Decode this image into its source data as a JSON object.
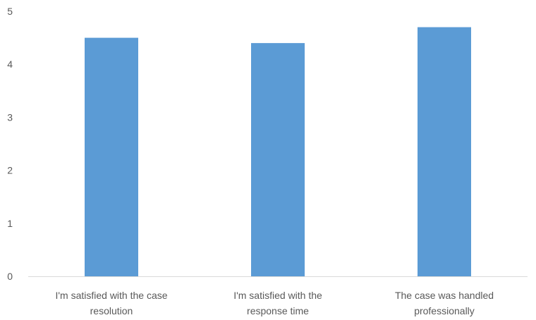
{
  "chart_data": {
    "type": "bar",
    "categories": [
      [
        "I'm satisfied with the case",
        "resolution"
      ],
      [
        "I'm satisfied with the",
        "response time"
      ],
      [
        "The case was handled",
        "professionally"
      ]
    ],
    "values": [
      4.5,
      4.4,
      4.7
    ],
    "ylim": [
      0,
      5
    ],
    "yticks": [
      "0",
      "1",
      "2",
      "3",
      "4",
      "5"
    ],
    "grid": false,
    "legend": "none",
    "bar_color": "#5B9BD5",
    "axis_color": "#D9D9D9",
    "label_color": "#595959"
  }
}
